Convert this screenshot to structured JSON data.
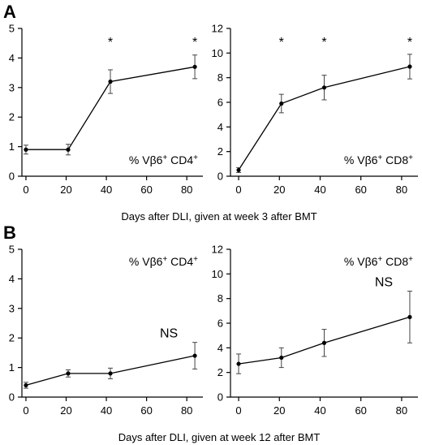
{
  "panels": [
    {
      "letter": "A",
      "caption": "Days after DLI, given at week 3 after BMT"
    },
    {
      "letter": "B",
      "caption": "Days after DLI, given at week 12 after BMT"
    }
  ],
  "chart_data": [
    {
      "type": "line",
      "panel": "A",
      "label": "% Vβ6+ CD4+",
      "label_parts": {
        "pre": "% Vβ6",
        "sup1": "+",
        "mid": " CD4",
        "sup2": "+"
      },
      "x": [
        0,
        21,
        42,
        84
      ],
      "y": [
        0.9,
        0.9,
        3.2,
        3.7
      ],
      "err": [
        0.15,
        0.18,
        0.4,
        0.4
      ],
      "significance": [
        "",
        "",
        "*",
        "*"
      ],
      "annotation": "",
      "xlim": [
        -2,
        88
      ],
      "ylim": [
        0,
        5
      ],
      "xticks": [
        0,
        20,
        40,
        60,
        80
      ],
      "yticks": [
        0,
        1,
        2,
        3,
        4,
        5
      ],
      "label_position": "bottom-right",
      "grid": false
    },
    {
      "type": "line",
      "panel": "A",
      "label": "% Vβ6+ CD8+",
      "label_parts": {
        "pre": "% Vβ6",
        "sup1": "+",
        "mid": " CD8",
        "sup2": "+"
      },
      "x": [
        0,
        21,
        42,
        84
      ],
      "y": [
        0.5,
        5.9,
        7.2,
        8.9
      ],
      "err": [
        0.2,
        0.75,
        1.0,
        1.0
      ],
      "significance": [
        "",
        "*",
        "*",
        "*"
      ],
      "annotation": "",
      "xlim": [
        -4,
        88
      ],
      "ylim": [
        0,
        12
      ],
      "xticks": [
        0,
        20,
        40,
        60,
        80
      ],
      "yticks": [
        0,
        2,
        4,
        6,
        8,
        10,
        12
      ],
      "label_position": "bottom-right",
      "grid": false
    },
    {
      "type": "line",
      "panel": "B",
      "label": "% Vβ6+ CD4+",
      "label_parts": {
        "pre": "% Vβ6",
        "sup1": "+",
        "mid": " CD4",
        "sup2": "+"
      },
      "x": [
        0,
        21,
        42,
        84
      ],
      "y": [
        0.4,
        0.8,
        0.8,
        1.4
      ],
      "err": [
        0.1,
        0.12,
        0.18,
        0.45
      ],
      "significance": [
        "",
        "",
        "",
        ""
      ],
      "annotation": "NS",
      "xlim": [
        -2,
        88
      ],
      "ylim": [
        0,
        5
      ],
      "xticks": [
        0,
        20,
        40,
        60,
        80
      ],
      "yticks": [
        0,
        1,
        2,
        3,
        4,
        5
      ],
      "label_position": "top-right",
      "grid": false
    },
    {
      "type": "line",
      "panel": "B",
      "label": "% Vβ6+ CD8+",
      "label_parts": {
        "pre": "% Vβ6",
        "sup1": "+",
        "mid": " CD8",
        "sup2": "+"
      },
      "x": [
        0,
        21,
        42,
        84
      ],
      "y": [
        2.7,
        3.2,
        4.4,
        6.5
      ],
      "err": [
        0.8,
        0.8,
        1.1,
        2.1
      ],
      "significance": [
        "",
        "",
        "",
        ""
      ],
      "annotation": "NS",
      "xlim": [
        -4,
        88
      ],
      "ylim": [
        0,
        12
      ],
      "xticks": [
        0,
        20,
        40,
        60,
        80
      ],
      "yticks": [
        0,
        2,
        4,
        6,
        8,
        10,
        12
      ],
      "label_position": "top-right",
      "grid": false
    }
  ]
}
